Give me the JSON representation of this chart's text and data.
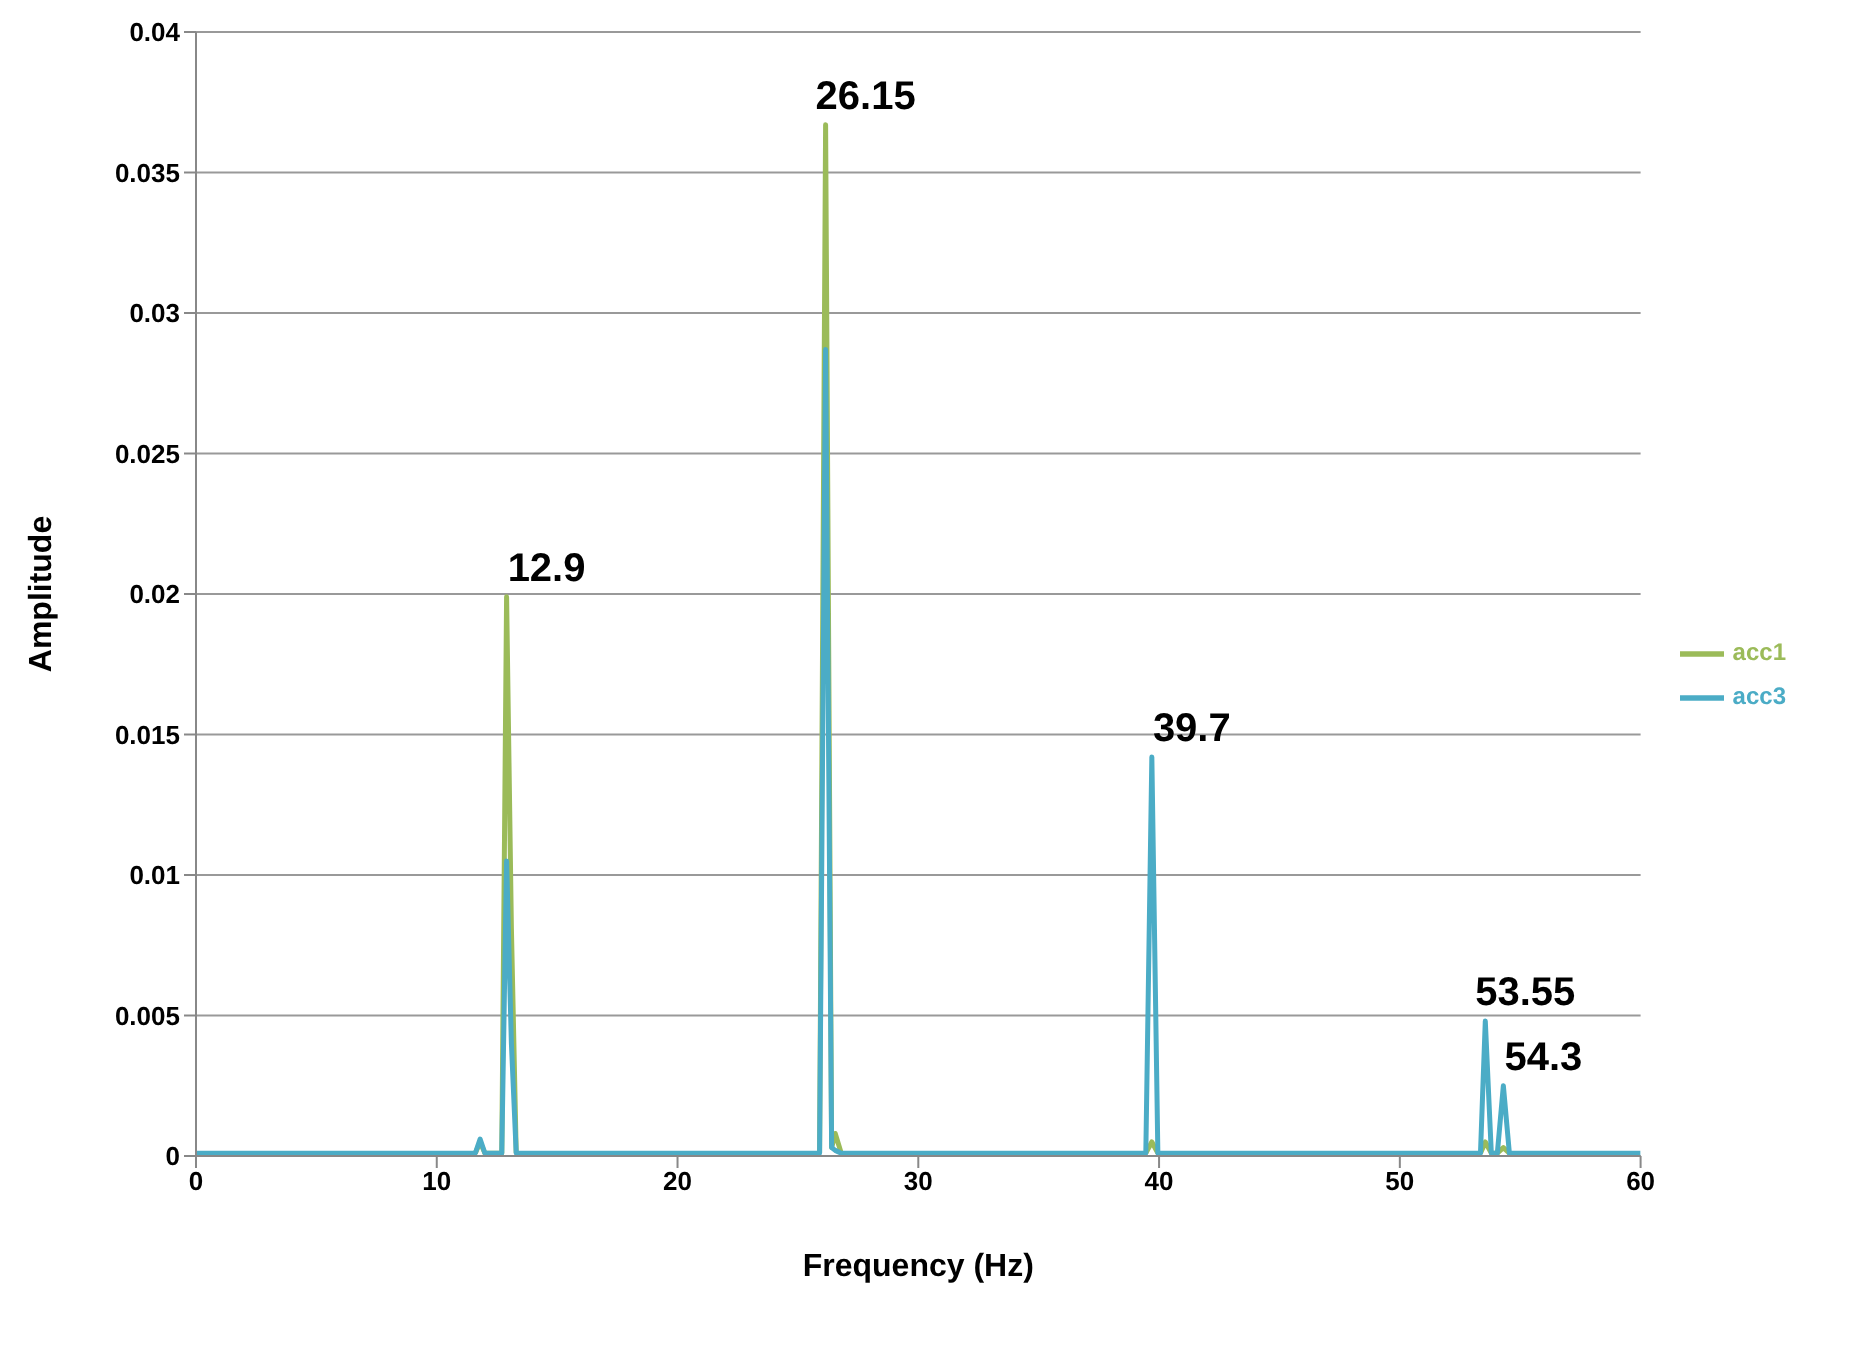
{
  "chart_data": {
    "type": "line",
    "xlabel": "Frequency (Hz)",
    "ylabel": "Amplitude",
    "x": [
      0,
      5,
      10,
      11.6,
      11.8,
      12.0,
      12.7,
      12.9,
      13.1,
      13.3,
      20,
      25.9,
      26.15,
      26.4,
      26.55,
      26.8,
      33,
      39.45,
      39.7,
      39.95,
      45,
      53.35,
      53.55,
      53.8,
      54.05,
      54.3,
      54.55,
      60
    ],
    "series": [
      {
        "name": "acc1",
        "color": "#9bbb59",
        "values": [
          null,
          null,
          null,
          0.0001,
          0.0005,
          0.0001,
          0.0001,
          0.0199,
          0.0081,
          0.0001,
          null,
          0.0001,
          0.0367,
          0.0003,
          0.0008,
          0.0001,
          null,
          0.0001,
          0.0005,
          0.0001,
          null,
          0.0001,
          0.0005,
          0.0001,
          0.0001,
          0.0003,
          0.0001,
          null
        ]
      },
      {
        "name": "acc3",
        "color": "#4bacc6",
        "values": [
          0.0001,
          0.0001,
          0.0001,
          0.0001,
          0.0006,
          0.0001,
          0.0001,
          0.0105,
          0.004,
          0.0001,
          0.0001,
          0.0001,
          0.0287,
          0.0003,
          0.0002,
          0.0001,
          0.0001,
          0.0001,
          0.0142,
          0.0001,
          0.0001,
          0.0001,
          0.0048,
          0.0001,
          0.0001,
          0.0025,
          0.0001,
          0.0001
        ]
      }
    ],
    "xlim": [
      0,
      60
    ],
    "xticks": [
      0,
      10,
      20,
      30,
      40,
      50,
      60
    ],
    "ylim": [
      0,
      0.04
    ],
    "yticks": [
      0,
      0.005,
      0.01,
      0.015,
      0.02,
      0.025,
      0.03,
      0.035,
      0.04
    ],
    "grid": "y",
    "legend": "right",
    "marker": "none",
    "line_style": "solid",
    "annotations": [
      {
        "text": "12.9",
        "x": 12.9,
        "y": 0.0199
      },
      {
        "text": "26.15",
        "x": 26.15,
        "y": 0.0367
      },
      {
        "text": "39.7",
        "x": 39.7,
        "y": 0.0142
      },
      {
        "text": "53.55",
        "x": 53.55,
        "y": 0.0048
      },
      {
        "text": "54.3",
        "x": 54.3,
        "y": 0.0025
      }
    ]
  }
}
